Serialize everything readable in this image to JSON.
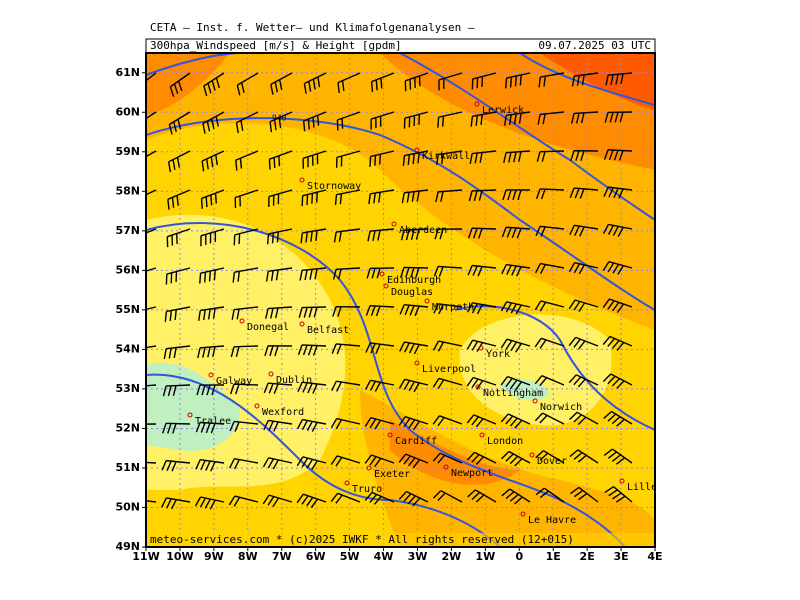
{
  "header": {
    "institute": "CETA – Inst. f. Wetter– und Klimafolgenanalysen –",
    "product": "300hpa_Windspeed [m/s] & Height [gpdm]",
    "valid_time": "09.07.2025 03 UTC"
  },
  "map": {
    "lat_ticks": [
      {
        "value": 49,
        "label": "49N"
      },
      {
        "value": 50,
        "label": "50N"
      },
      {
        "value": 51,
        "label": "51N"
      },
      {
        "value": 52,
        "label": "52N"
      },
      {
        "value": 53,
        "label": "53N"
      },
      {
        "value": 54,
        "label": "54N"
      },
      {
        "value": 55,
        "label": "55N"
      },
      {
        "value": 56,
        "label": "56N"
      },
      {
        "value": 57,
        "label": "57N"
      },
      {
        "value": 58,
        "label": "58N"
      },
      {
        "value": 59,
        "label": "59N"
      },
      {
        "value": 60,
        "label": "60N"
      },
      {
        "value": 61,
        "label": "61N"
      }
    ],
    "lon_ticks": [
      {
        "value": -11,
        "label": "11W"
      },
      {
        "value": -10,
        "label": "10W"
      },
      {
        "value": -9,
        "label": "9W"
      },
      {
        "value": -8,
        "label": "8W"
      },
      {
        "value": -7,
        "label": "7W"
      },
      {
        "value": -6,
        "label": "6W"
      },
      {
        "value": -5,
        "label": "5W"
      },
      {
        "value": -4,
        "label": "4W"
      },
      {
        "value": -3,
        "label": "3W"
      },
      {
        "value": -2,
        "label": "2W"
      },
      {
        "value": -1,
        "label": "1W"
      },
      {
        "value": 0,
        "label": "0"
      },
      {
        "value": 1,
        "label": "1E"
      },
      {
        "value": 2,
        "label": "2E"
      },
      {
        "value": 3,
        "label": "3E"
      },
      {
        "value": 4,
        "label": "4E"
      }
    ],
    "contour_label": "940",
    "cities": [
      "Lerwick",
      "Kirkwall",
      "Stornoway",
      "Aberdeen",
      "Edinburgh",
      "Douglas",
      "Morpeth",
      "Donegal",
      "Belfast",
      "York",
      "Galway",
      "Dublin",
      "Liverpool",
      "Nottingham",
      "Norwich",
      "Wexford",
      "Tralee",
      "Cardiff",
      "London",
      "Dover",
      "Exeter",
      "Newport",
      "Lille",
      "Truro",
      "Le Havre"
    ],
    "footer": "meteo-services.com * (c)2025 IWKF * All rights reserved (12+015)"
  }
}
